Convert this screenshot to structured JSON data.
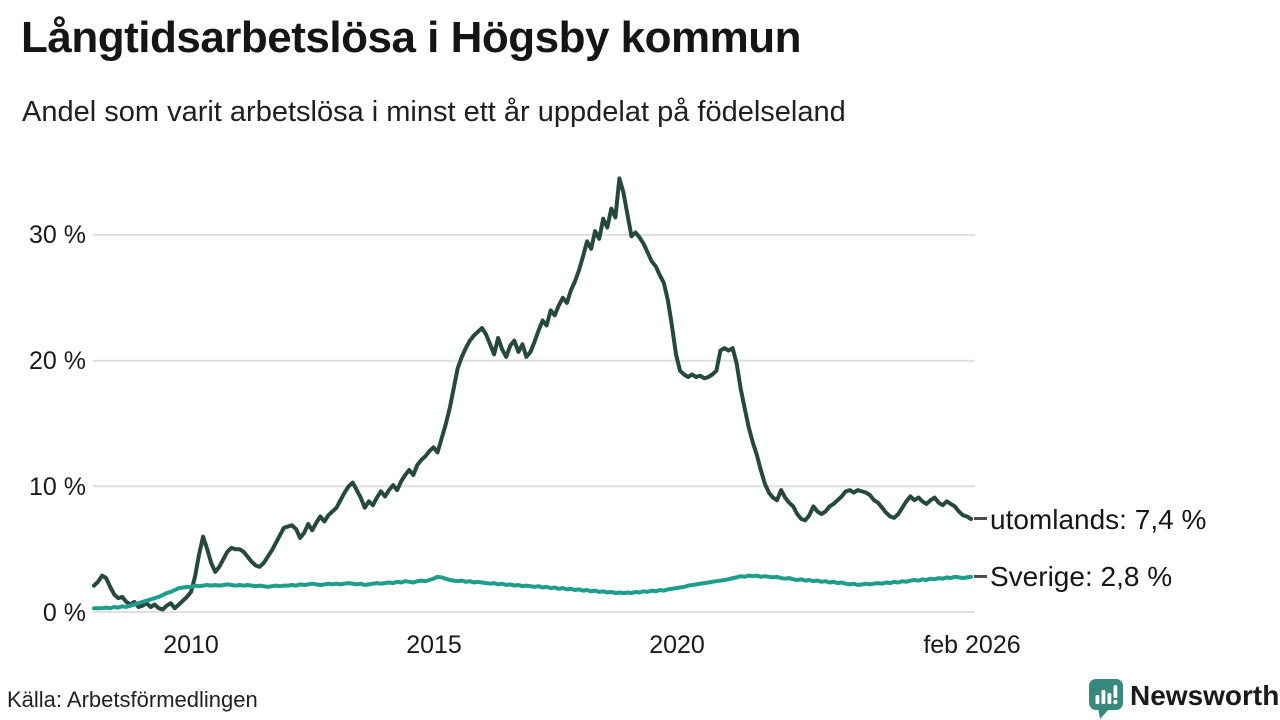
{
  "header": {
    "title": "Långtidsarbetslösa i Högsby kommun",
    "subtitle": "Andel som varit arbetslösa i minst ett år uppdelat på födelseland"
  },
  "footer": {
    "source": "Källa: Arbetsförmedlingen",
    "brand": "Newsworthy"
  },
  "colors": {
    "utomlands_line": "#26493f",
    "sverige_line": "#1d9e8c",
    "grid": "#e0e0e0",
    "text": "#1a1a1a",
    "brand": "#37897d",
    "leader": "#4d4d4d",
    "background": "#ffffff"
  },
  "chart_data": {
    "type": "line",
    "title": "Långtidsarbetslösa i Högsby kommun",
    "subtitle": "Andel som varit arbetslösa i minst ett år uppdelat på födelseland",
    "source": "Källa: Arbetsförmedlingen",
    "x_axis": {
      "start": "2008-01",
      "end": "2026-02",
      "frequency": "monthly",
      "tick_labels": [
        "2010",
        "2015",
        "2020",
        "feb 2026"
      ],
      "tick_years": [
        2010,
        2015,
        2020,
        2026.083
      ]
    },
    "y_axis": {
      "unit": "%",
      "range": [
        0,
        36
      ],
      "tick_values": [
        0,
        10,
        20,
        30
      ],
      "tick_labels": [
        "0 %",
        "10 %",
        "20 %",
        "30 %"
      ],
      "grid": true
    },
    "legend_position": "line-end-labels-right",
    "series": [
      {
        "id": "utomlands",
        "name": "utomlands",
        "color": "#26493f",
        "end_label": "utomlands: 7,4 %",
        "latest_value": 7.4,
        "values": [
          2.1,
          2.4,
          2.9,
          2.7,
          2.0,
          1.4,
          1.1,
          1.2,
          0.8,
          0.6,
          0.8,
          0.4,
          0.5,
          0.7,
          0.4,
          0.6,
          0.3,
          0.2,
          0.5,
          0.7,
          0.3,
          0.6,
          0.9,
          1.2,
          1.6,
          2.8,
          4.6,
          6.0,
          5.0,
          3.9,
          3.2,
          3.6,
          4.2,
          4.8,
          5.1,
          5.0,
          5.0,
          4.8,
          4.4,
          4.0,
          3.7,
          3.6,
          3.9,
          4.4,
          4.9,
          5.5,
          6.1,
          6.7,
          6.8,
          6.9,
          6.6,
          5.9,
          6.3,
          7.0,
          6.5,
          7.1,
          7.6,
          7.2,
          7.7,
          8.0,
          8.3,
          8.9,
          9.5,
          10.0,
          10.3,
          9.7,
          9.1,
          8.3,
          8.8,
          8.5,
          9.1,
          9.6,
          9.2,
          9.7,
          10.1,
          9.7,
          10.4,
          10.9,
          11.3,
          10.9,
          11.7,
          12.1,
          12.4,
          12.8,
          13.1,
          12.7,
          13.8,
          14.9,
          16.2,
          17.8,
          19.4,
          20.3,
          21.0,
          21.6,
          22.0,
          22.3,
          22.6,
          22.1,
          21.3,
          20.5,
          21.8,
          20.9,
          20.3,
          21.2,
          21.6,
          20.7,
          21.3,
          20.3,
          20.7,
          21.5,
          22.4,
          23.2,
          22.8,
          24.0,
          23.6,
          24.4,
          25.0,
          24.6,
          25.6,
          26.3,
          27.2,
          28.3,
          29.5,
          28.9,
          30.3,
          29.7,
          31.3,
          30.6,
          32.1,
          31.4,
          34.5,
          33.4,
          31.6,
          29.9,
          30.2,
          29.8,
          29.3,
          28.6,
          27.9,
          27.5,
          26.8,
          26.2,
          24.8,
          22.8,
          20.5,
          19.2,
          18.9,
          18.7,
          18.9,
          18.7,
          18.8,
          18.6,
          18.7,
          18.9,
          19.2,
          20.8,
          21.0,
          20.8,
          21.0,
          19.8,
          17.8,
          16.2,
          14.7,
          13.5,
          12.5,
          11.3,
          10.2,
          9.5,
          9.1,
          8.9,
          9.7,
          9.1,
          8.7,
          8.4,
          7.8,
          7.4,
          7.3,
          7.7,
          8.4,
          8.0,
          7.8,
          8.0,
          8.4,
          8.6,
          8.9,
          9.2,
          9.6,
          9.7,
          9.5,
          9.7,
          9.6,
          9.5,
          9.3,
          8.9,
          8.7,
          8.3,
          7.9,
          7.6,
          7.5,
          7.8,
          8.3,
          8.8,
          9.2,
          8.9,
          9.1,
          8.8,
          8.6,
          8.9,
          9.1,
          8.7,
          8.5,
          8.8,
          8.6,
          8.4,
          8.0,
          7.7,
          7.6,
          7.4
        ]
      },
      {
        "id": "sverige",
        "name": "Sverige",
        "color": "#1d9e8c",
        "end_label": "Sverige: 2,8 %",
        "latest_value": 2.8,
        "values": [
          0.3,
          0.3,
          0.3,
          0.35,
          0.3,
          0.4,
          0.35,
          0.45,
          0.4,
          0.5,
          0.6,
          0.7,
          0.8,
          0.9,
          1.0,
          1.1,
          1.2,
          1.35,
          1.5,
          1.6,
          1.75,
          1.9,
          1.95,
          2.0,
          2.0,
          2.1,
          2.05,
          2.1,
          2.15,
          2.1,
          2.15,
          2.1,
          2.15,
          2.2,
          2.15,
          2.1,
          2.15,
          2.1,
          2.15,
          2.1,
          2.05,
          2.1,
          2.05,
          2.0,
          2.05,
          2.1,
          2.05,
          2.1,
          2.1,
          2.15,
          2.1,
          2.2,
          2.15,
          2.2,
          2.25,
          2.2,
          2.15,
          2.2,
          2.25,
          2.2,
          2.25,
          2.2,
          2.25,
          2.3,
          2.25,
          2.2,
          2.25,
          2.15,
          2.2,
          2.25,
          2.3,
          2.25,
          2.3,
          2.35,
          2.3,
          2.4,
          2.35,
          2.45,
          2.4,
          2.35,
          2.45,
          2.5,
          2.45,
          2.55,
          2.65,
          2.8,
          2.75,
          2.65,
          2.55,
          2.5,
          2.45,
          2.5,
          2.4,
          2.45,
          2.35,
          2.4,
          2.35,
          2.3,
          2.25,
          2.3,
          2.2,
          2.25,
          2.15,
          2.2,
          2.1,
          2.15,
          2.05,
          2.1,
          2.05,
          2.0,
          2.05,
          1.95,
          2.0,
          1.9,
          1.95,
          1.85,
          1.9,
          1.8,
          1.85,
          1.75,
          1.8,
          1.7,
          1.75,
          1.65,
          1.7,
          1.6,
          1.65,
          1.55,
          1.6,
          1.5,
          1.55,
          1.5,
          1.55,
          1.5,
          1.6,
          1.55,
          1.65,
          1.6,
          1.7,
          1.65,
          1.75,
          1.7,
          1.8,
          1.85,
          1.9,
          1.95,
          2.0,
          2.1,
          2.15,
          2.2,
          2.25,
          2.3,
          2.35,
          2.4,
          2.45,
          2.5,
          2.55,
          2.6,
          2.7,
          2.75,
          2.85,
          2.8,
          2.9,
          2.85,
          2.9,
          2.8,
          2.85,
          2.8,
          2.75,
          2.8,
          2.7,
          2.65,
          2.7,
          2.6,
          2.55,
          2.6,
          2.5,
          2.55,
          2.45,
          2.5,
          2.4,
          2.45,
          2.35,
          2.4,
          2.3,
          2.35,
          2.25,
          2.2,
          2.25,
          2.15,
          2.2,
          2.25,
          2.2,
          2.25,
          2.3,
          2.25,
          2.35,
          2.3,
          2.4,
          2.35,
          2.45,
          2.4,
          2.5,
          2.55,
          2.5,
          2.6,
          2.55,
          2.65,
          2.6,
          2.7,
          2.65,
          2.75,
          2.7,
          2.8,
          2.75,
          2.7,
          2.75,
          2.8
        ]
      }
    ]
  }
}
